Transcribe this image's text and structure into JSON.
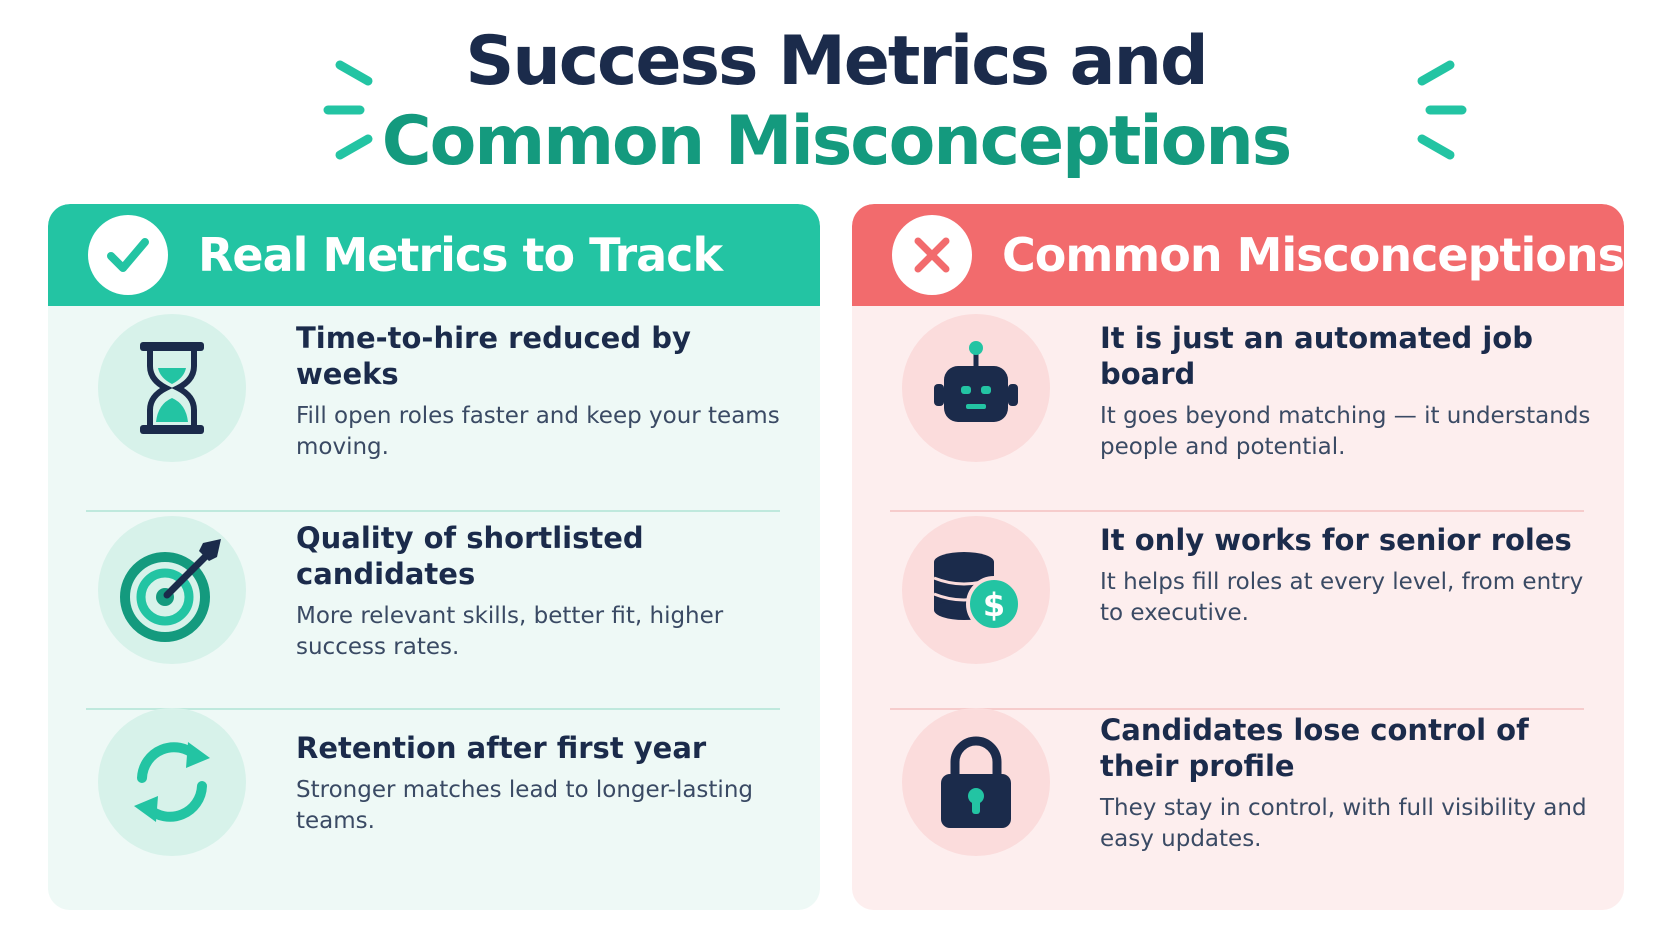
{
  "title": {
    "line1": "Success Metrics and",
    "line2": "Common Misconceptions"
  },
  "colors": {
    "navy": "#1b2b4b",
    "teal": "#23c4a3",
    "teal_dark": "#149a7e",
    "coral": "#f26b6d"
  },
  "left_panel": {
    "header_icon": "check-icon",
    "title": "Real Metrics to Track",
    "items": [
      {
        "icon": "hourglass-icon",
        "title": "Time-to-hire reduced by weeks",
        "desc": "Fill open roles faster and keep your teams moving."
      },
      {
        "icon": "target-icon",
        "title": "Quality of shortlisted candidates",
        "desc": "More relevant skills, better fit, higher success rates."
      },
      {
        "icon": "refresh-icon",
        "title": "Retention after first year",
        "desc": "Stronger matches lead to longer-lasting teams."
      }
    ]
  },
  "right_panel": {
    "header_icon": "x-icon",
    "title": "Common Misconceptions",
    "items": [
      {
        "icon": "robot-icon",
        "title": "It is just an automated job board",
        "desc": "It goes beyond matching — it understands people and potential."
      },
      {
        "icon": "coins-dollar-icon",
        "title": "It only works for senior roles",
        "desc": "It helps fill roles at every level, from entry to executive."
      },
      {
        "icon": "padlock-icon",
        "title": "Candidates lose control of their profile",
        "desc": "They stay in control, with full visibility and easy updates."
      }
    ]
  }
}
